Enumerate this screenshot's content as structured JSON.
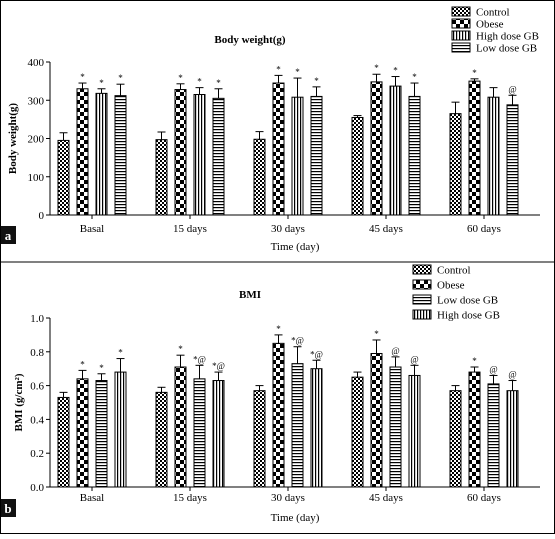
{
  "chart_data": [
    {
      "panel_label": "a",
      "type": "bar",
      "title": "Body weight(g)",
      "xlabel": "Time (day)",
      "ylabel": "Body weight(g)",
      "categories": [
        "Basal",
        "15 days",
        "30 days",
        "45 days",
        "60 days"
      ],
      "ylim": [
        0,
        400
      ],
      "yticks": [
        "0",
        "100",
        "200",
        "300",
        "400"
      ],
      "legend_position": "top-right",
      "series": [
        {
          "name": "Control",
          "pattern": "checker",
          "values": [
            195,
            197,
            198,
            255,
            265
          ],
          "errors": [
            20,
            20,
            20,
            5,
            30
          ],
          "annotations": [
            "",
            "",
            "",
            "",
            ""
          ]
        },
        {
          "name": "Obese",
          "pattern": "coarse-checker",
          "values": [
            330,
            328,
            345,
            348,
            350
          ],
          "errors": [
            15,
            15,
            20,
            20,
            6
          ],
          "annotations": [
            "*",
            "*",
            "*",
            "*",
            "*"
          ]
        },
        {
          "name": "High dose GB",
          "pattern": "vertical-lines",
          "values": [
            318,
            315,
            308,
            337,
            308
          ],
          "errors": [
            12,
            18,
            50,
            25,
            25
          ],
          "annotations": [
            "*",
            "*",
            "*",
            "*",
            ""
          ]
        },
        {
          "name": "Low dose GB",
          "pattern": "horizontal-lines",
          "values": [
            312,
            305,
            310,
            310,
            288
          ],
          "errors": [
            30,
            25,
            25,
            35,
            25
          ],
          "annotations": [
            "*",
            "*",
            "*",
            "*",
            "@"
          ]
        }
      ]
    },
    {
      "panel_label": "b",
      "type": "bar",
      "title": "BMI",
      "xlabel": "Time (day)",
      "ylabel": "BMI (g/cm²)",
      "categories": [
        "Basal",
        "15 days",
        "30 days",
        "45 days",
        "60 days"
      ],
      "ylim": [
        0,
        1.0
      ],
      "yticks": [
        "0.0",
        "0.2",
        "0.4",
        "0.6",
        "0.8",
        "1.0"
      ],
      "legend_position": "top-right",
      "series": [
        {
          "name": "Control",
          "pattern": "checker",
          "values": [
            0.53,
            0.56,
            0.57,
            0.65,
            0.57
          ],
          "errors": [
            0.03,
            0.03,
            0.03,
            0.03,
            0.03
          ],
          "annotations": [
            "",
            "",
            "",
            "",
            ""
          ]
        },
        {
          "name": "Obese",
          "pattern": "coarse-checker",
          "values": [
            0.64,
            0.71,
            0.85,
            0.79,
            0.68
          ],
          "errors": [
            0.05,
            0.07,
            0.05,
            0.08,
            0.03
          ],
          "annotations": [
            "*",
            "*",
            "*",
            "*",
            "*"
          ]
        },
        {
          "name": "Low dose GB",
          "pattern": "horizontal-lines",
          "values": [
            0.63,
            0.64,
            0.73,
            0.71,
            0.61
          ],
          "errors": [
            0.04,
            0.08,
            0.1,
            0.06,
            0.05
          ],
          "annotations": [
            "*",
            "*@",
            "*@",
            "@",
            "@"
          ]
        },
        {
          "name": "High dose GB",
          "pattern": "vertical-lines",
          "values": [
            0.68,
            0.63,
            0.7,
            0.66,
            0.57
          ],
          "errors": [
            0.08,
            0.05,
            0.05,
            0.06,
            0.06
          ],
          "annotations": [
            "*",
            "*@",
            "*@",
            "@",
            "@"
          ]
        }
      ]
    }
  ]
}
